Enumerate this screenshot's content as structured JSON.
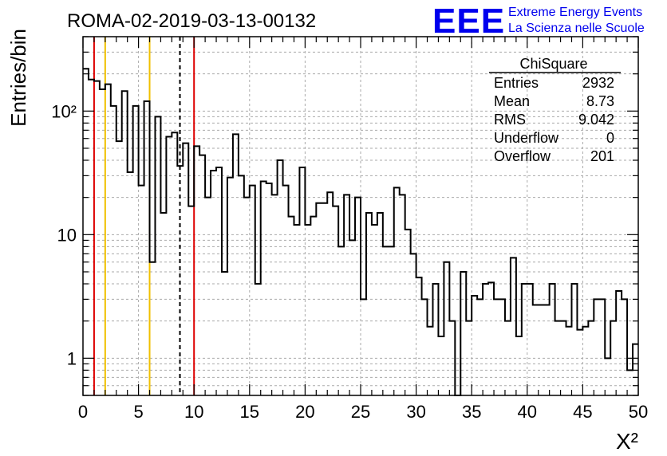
{
  "header": {
    "run_title": "ROMA-02-2019-03-13-00132",
    "logo_text": "EEE",
    "logo_line1": "Extreme Energy Events",
    "logo_line2": "La Scienza nelle Scuole"
  },
  "stats_box": {
    "title": "ChiSquare",
    "rows": [
      {
        "label": "Entries",
        "value": "2932"
      },
      {
        "label": "Mean",
        "value": "8.73"
      },
      {
        "label": "RMS",
        "value": "9.042"
      },
      {
        "label": "Underflow",
        "value": "0"
      },
      {
        "label": "Overflow",
        "value": "201"
      }
    ]
  },
  "colors": {
    "histogram": "#000000",
    "red_marker": "#dd0000",
    "yellow_marker": "#f0c000",
    "dashed_marker": "#000000",
    "grid": "#aaaaaa",
    "logo": "#0000ee"
  },
  "chart_data": {
    "type": "histogram",
    "title": "",
    "xlabel": "X²",
    "ylabel": "Entries/bin",
    "xlim": [
      0,
      50
    ],
    "ylim": [
      0.5,
      400
    ],
    "log_y": true,
    "grid": true,
    "bin_width": 0.5,
    "x_ticks": [
      0,
      5,
      10,
      15,
      20,
      25,
      30,
      35,
      40,
      45,
      50
    ],
    "x_tick_labels": [
      "0",
      "5",
      "10",
      "15",
      "20",
      "25",
      "30",
      "35",
      "40",
      "45",
      "50"
    ],
    "y_ticks": [
      1,
      10,
      100
    ],
    "y_tick_labels": [
      "1",
      "10",
      "10²"
    ],
    "values": [
      220,
      180,
      175,
      150,
      165,
      110,
      57,
      145,
      32,
      110,
      25,
      120,
      6,
      90,
      15,
      62,
      67,
      36,
      55,
      17,
      52,
      44,
      20,
      33,
      35,
      5,
      29,
      65,
      30,
      20,
      25,
      4,
      27,
      26,
      21,
      40,
      25,
      14,
      12,
      35,
      12,
      14,
      18,
      18,
      22,
      17,
      8,
      21,
      9,
      20,
      3,
      15,
      12,
      15,
      8,
      8,
      24,
      21,
      11,
      7,
      4.5,
      3,
      1.8,
      4,
      1.5,
      6,
      2,
      0,
      5,
      2,
      3.2,
      3,
      4,
      4.1,
      3,
      3,
      2,
      6.5,
      1.5,
      4,
      4,
      2.7,
      2.7,
      2.7,
      4,
      2,
      2,
      1.8,
      4,
      1.7,
      1.8,
      2,
      3,
      3,
      1,
      2,
      3.5,
      3,
      0.8,
      1.3
    ],
    "markers": [
      {
        "x": 1,
        "style": "red"
      },
      {
        "x": 2,
        "style": "yellow"
      },
      {
        "x": 6,
        "style": "yellow"
      },
      {
        "x": 8.73,
        "style": "dashed"
      },
      {
        "x": 10,
        "style": "red"
      }
    ]
  }
}
